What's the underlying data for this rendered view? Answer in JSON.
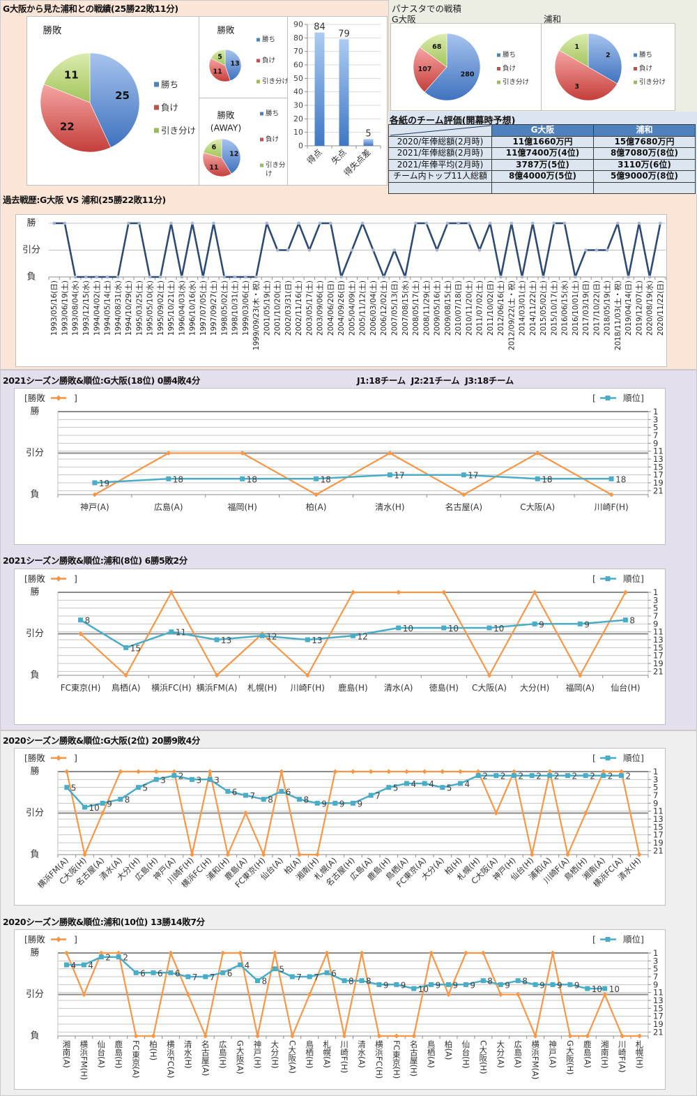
{
  "summary": {
    "title": "G大阪から見た浦和との戦績(25勝22敗11分)"
  },
  "panasta": {
    "title": "パナスタでの戦積"
  },
  "evaluation_table": {
    "title": "各紙のチーム評価(開幕時予想)",
    "headers": [
      "",
      "G大阪",
      "浦和"
    ],
    "rows": [
      [
        "2020/年俸総額(2月時)",
        "11億1660万円",
        "15億7680万円"
      ],
      [
        "2021/年俸総額(2月時)",
        "11億7400万(4位)",
        "8億7080万(8位)"
      ],
      [
        "2021/年俸平均(2月時)",
        "3787万(5位)",
        "3110万(6位)"
      ],
      [
        "チーム内トップ11人総額",
        "8億4000万(5位)",
        "5億9000万(8位)"
      ],
      [
        "",
        "",
        ""
      ]
    ]
  },
  "league_info": "J1:18チーム  J2:21チーム  J3:18チーム",
  "legend_brackets": [
    "[",
    "]"
  ],
  "colors": {
    "win": "#4f81bd",
    "loss": "#c0504d",
    "draw": "#9bbb59",
    "result_line": "#f79646",
    "rank_line": "#4bacc6",
    "history_line": "#2c4a74",
    "bar": "#4f81bd",
    "table_header": "#4f81bd",
    "table_body": "#dce6f1"
  },
  "chart_data": [
    {
      "id": "pie-total",
      "type": "pie",
      "title": "勝敗",
      "categories": [
        "勝ち",
        "負け",
        "引き分け"
      ],
      "values": [
        25,
        22,
        11
      ],
      "legend": "right"
    },
    {
      "id": "pie-home",
      "type": "pie",
      "title": "勝敗",
      "categories": [
        "勝ち",
        "負け",
        "引き分け"
      ],
      "values": [
        13,
        11,
        5
      ],
      "legend": "right"
    },
    {
      "id": "pie-away",
      "type": "pie",
      "title": "勝敗",
      "subtitle": "(AWAY)",
      "categories": [
        "勝ち",
        "負け",
        "引き分け"
      ],
      "values": [
        12,
        11,
        6
      ],
      "legend": "right"
    },
    {
      "id": "bar-goals",
      "type": "bar",
      "title": "",
      "categories": [
        "得点",
        "失点",
        "得失点差"
      ],
      "values": [
        84,
        79,
        5
      ],
      "ylim": [
        0,
        90
      ],
      "yticks": [
        0,
        10,
        20,
        30,
        40,
        50,
        60,
        70,
        80,
        90
      ],
      "grid": true
    },
    {
      "id": "pie-panasta-gosaka",
      "type": "pie",
      "title": "G大阪",
      "categories": [
        "勝ち",
        "負け",
        "引き分け"
      ],
      "values": [
        280,
        107,
        68
      ],
      "legend": "right"
    },
    {
      "id": "pie-panasta-urawa",
      "type": "pie",
      "title": "浦和",
      "categories": [
        "勝ち",
        "負け",
        "引き分け"
      ],
      "values": [
        2,
        3,
        1
      ],
      "legend": "right"
    },
    {
      "id": "history",
      "type": "line",
      "title": "過去戦歴:G大阪 VS 浦和(25勝22敗11分)",
      "y_ticks": [
        "勝",
        "引分",
        "負"
      ],
      "x": [
        "1993/05/16(日)",
        "1993/06/19(土)",
        "1993/08/04(水)",
        "1993/12/15(水)",
        "1994/04/02(土)",
        "1994/05/14(土)",
        "1994/08/31(水)",
        "1994/10/29(土)",
        "1995/03/25(土)",
        "1995/05/10(水)",
        "1995/09/02(土)",
        "1995/10/21(土)",
        "1996/04/03(水)",
        "1996/10/16(水)",
        "1997/07/05(土)",
        "1997/09/27(土)",
        "1998/05/02(土)",
        "1998/10/31(土)",
        "1999/03/06(土)",
        "1999/09/23(木・祝)",
        "2001/05/19(土)",
        "2001/10/20(土)",
        "2002/03/31(日)",
        "2002/11/16(土)",
        "2003/05/17(土)",
        "2003/09/06(土)",
        "2004/06/20(日)",
        "2004/09/26(日)",
        "2005/04/09(土)",
        "2005/11/12(土)",
        "2006/03/04(土)",
        "2006/12/02(土)",
        "2007/05/13(日)",
        "2007/08/15(水)",
        "2008/05/17(土)",
        "2008/11/29(土)",
        "2009/05/16(土)",
        "2009/08/15(土)",
        "2010/07/18(日)",
        "2010/11/20(土)",
        "2011/07/02(土)",
        "2011/10/02(日)",
        "2012/06/16(土)",
        "2012/09/22(土・祝)",
        "2014/03/01(土)",
        "2014/11/22(土)",
        "2015/05/02(土)",
        "2015/10/17(土)",
        "2016/06/15(水)",
        "2016/10/01(土)",
        "2017/03/19(日)",
        "2017/10/22(日)",
        "2018/05/19(土)",
        "2018/11/03(土・祝)",
        "2019/04/14(日)",
        "2019/12/07(土)",
        "2020/08/19(水)",
        "2020/11/22(日)"
      ],
      "y": [
        "勝",
        "勝",
        "負",
        "負",
        "負",
        "負",
        "負",
        "勝",
        "勝",
        "負",
        "負",
        "勝",
        "負",
        "勝",
        "負",
        "勝",
        "負",
        "負",
        "負",
        "負",
        "勝",
        "引分",
        "引分",
        "勝",
        "引分",
        "勝",
        "勝",
        "負",
        "引分",
        "勝",
        "引分",
        "負",
        "引分",
        "負",
        "勝",
        "勝",
        "引分",
        "勝",
        "勝",
        "勝",
        "引分",
        "勝",
        "負",
        "勝",
        "負",
        "勝",
        "負",
        "勝",
        "勝",
        "負",
        "引分",
        "引分",
        "引分",
        "勝",
        "負",
        "勝",
        "負",
        "勝"
      ]
    },
    {
      "id": "season-2021-gosaka",
      "type": "line",
      "title": "2021シーズン勝敗&順位:G大阪(18位) 0勝4敗4分",
      "y_ticks": [
        "勝",
        "引分",
        "負"
      ],
      "y2_ticks": [
        1,
        3,
        5,
        7,
        9,
        11,
        13,
        15,
        17,
        19,
        21
      ],
      "y2lim": [
        1,
        22
      ],
      "categories": [
        "神戸(A)",
        "広島(A)",
        "福岡(H)",
        "柏(A)",
        "清水(H)",
        "名古屋(A)",
        "C大阪(A)",
        "川崎F(H)"
      ],
      "series": [
        {
          "name": "勝敗",
          "values": [
            "負",
            "引分",
            "引分",
            "負",
            "引分",
            "負",
            "引分",
            "負"
          ]
        },
        {
          "name": "順位",
          "axis": "right",
          "values": [
            19,
            18,
            18,
            18,
            17,
            17,
            18,
            18
          ]
        }
      ]
    },
    {
      "id": "season-2021-urawa",
      "type": "line",
      "title": "2021シーズン勝敗&順位:浦和(8位) 6勝5敗2分",
      "y_ticks": [
        "勝",
        "引分",
        "負"
      ],
      "y2_ticks": [
        1,
        3,
        5,
        7,
        9,
        11,
        13,
        15,
        17,
        19,
        21
      ],
      "y2lim": [
        1,
        22
      ],
      "categories": [
        "FC東京(H)",
        "鳥栖(A)",
        "横浜FC(H)",
        "横浜FM(A)",
        "札幌(H)",
        "川崎F(H)",
        "鹿島(H)",
        "清水(A)",
        "徳島(H)",
        "C大阪(A)",
        "大分(H)",
        "福岡(A)",
        "仙台(H)"
      ],
      "series": [
        {
          "name": "勝敗",
          "values": [
            "引分",
            "負",
            "勝",
            "負",
            "引分",
            "負",
            "勝",
            "勝",
            "勝",
            "負",
            "勝",
            "負",
            "勝"
          ]
        },
        {
          "name": "順位",
          "axis": "right",
          "values": [
            8,
            15,
            11,
            13,
            12,
            13,
            12,
            10,
            10,
            10,
            9,
            9,
            8
          ]
        }
      ]
    },
    {
      "id": "season-2020-gosaka",
      "type": "line",
      "title": "2020シーズン勝敗&順位:G大阪(2位) 20勝9敗4分",
      "y_ticks": [
        "勝",
        "引分",
        "負"
      ],
      "y2_ticks": [
        1,
        3,
        5,
        7,
        9,
        11,
        13,
        15,
        17,
        19,
        21
      ],
      "y2lim": [
        1,
        22
      ],
      "categories": [
        "横浜FM(A)",
        "C大阪(H)",
        "名古屋(A)",
        "清水(A)",
        "大分(H)",
        "広島(H)",
        "神戸(A)",
        "川崎F(H)",
        "横浜FC(H)",
        "浦和(H)",
        "鹿島(A)",
        "FC東京(H)",
        "仙台(A)",
        "柏(A)",
        "湘南(H)",
        "札幌(A)",
        "名古屋(H)",
        "広島(A)",
        "鹿島(H)",
        "鳥栖(A)",
        "FC東京(A)",
        "大分(A)",
        "柏(H)",
        "札幌(H)",
        "C大阪(A)",
        "神戸(H)",
        "仙台(H)",
        "浦和(A)",
        "川崎F(A)",
        "鳥栖(H)",
        "湘南(A)",
        "横浜FC(A)",
        "清水(H)"
      ],
      "series": [
        {
          "name": "勝敗",
          "values": [
            "勝",
            "負",
            "引分",
            "勝",
            "勝",
            "勝",
            "勝",
            "負",
            "勝",
            "負",
            "引分",
            "負",
            "勝",
            "負",
            "負",
            "勝",
            "勝",
            "勝",
            "勝",
            "勝",
            "勝",
            "勝",
            "勝",
            "勝",
            "引分",
            "勝",
            "負",
            "勝",
            "負",
            "引分",
            "勝",
            "勝",
            "負"
          ]
        },
        {
          "name": "順位",
          "axis": "right",
          "values": [
            5,
            10,
            9,
            8,
            5,
            3,
            2,
            3,
            3,
            6,
            7,
            8,
            6,
            8,
            9,
            9,
            9,
            7,
            5,
            4,
            4,
            5,
            4,
            2,
            2,
            2,
            2,
            2,
            2,
            2,
            2,
            2,
            null
          ]
        }
      ]
    },
    {
      "id": "season-2020-urawa",
      "type": "line",
      "title": "2020シーズン勝敗&順位:浦和(10位) 13勝14敗7分",
      "y_ticks": [
        "勝",
        "引分",
        "負"
      ],
      "y2_ticks": [
        1,
        3,
        5,
        7,
        9,
        11,
        13,
        15,
        17,
        19,
        21
      ],
      "y2lim": [
        1,
        22
      ],
      "categories": [
        "湘南(A)",
        "横浜FM(H)",
        "仙台(A)",
        "鹿島(H)",
        "FC東京(A)",
        "柏(H)",
        "横浜FC(A)",
        "清水(H)",
        "名古屋(A)",
        "広島(H)",
        "G大阪(A)",
        "神戸(H)",
        "大分(H)",
        "C大阪(A)",
        "鳥栖(H)",
        "札幌(A)",
        "川崎F(H)",
        "清水(A)",
        "横浜FC(H)",
        "FC東京(H)",
        "名古屋(H)",
        "鳥栖(A)",
        "柏(A)",
        "仙台(H)",
        "C大阪(H)",
        "大分(A)",
        "広島(A)",
        "横浜FM(A)",
        "神戸(A)",
        "G大阪(H)",
        "鹿島(A)",
        "湘南(H)",
        "川崎F(A)",
        "札幌(H)"
      ],
      "series": [
        {
          "name": "勝敗",
          "values": [
            "勝",
            "引分",
            "勝",
            "勝",
            "負",
            "負",
            "勝",
            "引分",
            "負",
            "勝",
            "勝",
            "負",
            "勝",
            "負",
            "引分",
            "勝",
            "負",
            "勝",
            "負",
            "負",
            "負",
            "勝",
            "引分",
            "勝",
            "勝",
            "引分",
            "引分",
            "負",
            "勝",
            "負",
            "負",
            "引分",
            "負",
            "負"
          ]
        },
        {
          "name": "順位",
          "axis": "right",
          "values": [
            4,
            4,
            2,
            2,
            6,
            6,
            6,
            7,
            7,
            6,
            4,
            8,
            5,
            7,
            7,
            6,
            8,
            8,
            9,
            9,
            10,
            9,
            9,
            9,
            8,
            9,
            8,
            9,
            9,
            9,
            10,
            10,
            null,
            null
          ]
        }
      ]
    }
  ]
}
